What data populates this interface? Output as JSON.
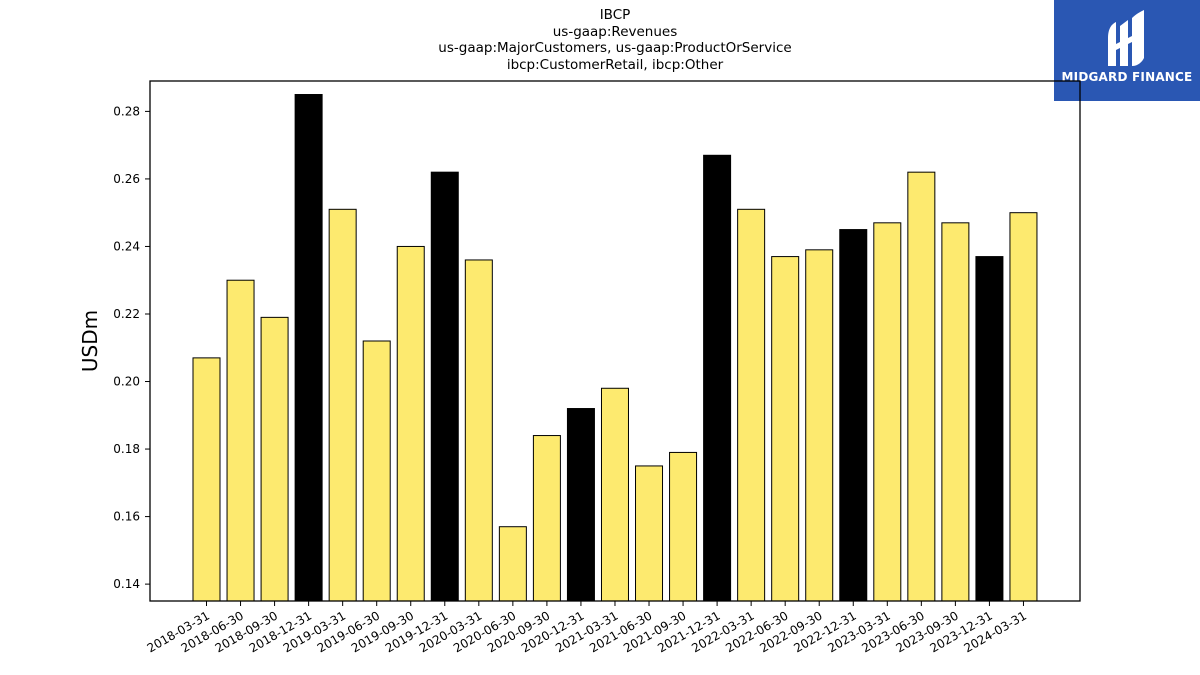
{
  "title_lines": [
    "IBCP",
    "us-gaap:Revenues",
    "us-gaap:MajorCustomers, us-gaap:ProductOrService",
    "ibcp:CustomerRetail, ibcp:Other"
  ],
  "logo": {
    "text": "MIDGARD FINANCE",
    "icon": "midgard-logo-icon",
    "background": "#2a57b3"
  },
  "colors": {
    "regular_bar": "#fdea6f",
    "q4_bar": "#000000",
    "bar_edge": "#000000"
  },
  "chart_data": {
    "type": "bar",
    "title": "IBCP\nus-gaap:Revenues\nus-gaap:MajorCustomers, us-gaap:ProductOrService\nibcp:CustomerRetail, ibcp:Other",
    "xlabel": "",
    "ylabel": "USDm",
    "ylim": [
      0.135,
      0.289
    ],
    "yticks": [
      0.14,
      0.16,
      0.18,
      0.2,
      0.22,
      0.24,
      0.26,
      0.28
    ],
    "ytick_labels": [
      "0.14",
      "0.16",
      "0.18",
      "0.20",
      "0.22",
      "0.24",
      "0.26",
      "0.28"
    ],
    "grid": false,
    "categories": [
      "2018-03-31",
      "2018-06-30",
      "2018-09-30",
      "2018-12-31",
      "2019-03-31",
      "2019-06-30",
      "2019-09-30",
      "2019-12-31",
      "2020-03-31",
      "2020-06-30",
      "2020-09-30",
      "2020-12-31",
      "2021-03-31",
      "2021-06-30",
      "2021-09-30",
      "2021-12-31",
      "2022-03-31",
      "2022-06-30",
      "2022-09-30",
      "2022-12-31",
      "2023-03-31",
      "2023-06-30",
      "2023-09-30",
      "2023-12-31",
      "2024-03-31"
    ],
    "values": [
      0.207,
      0.23,
      0.219,
      0.285,
      0.251,
      0.212,
      0.24,
      0.262,
      0.236,
      0.157,
      0.184,
      0.192,
      0.198,
      0.175,
      0.179,
      0.267,
      0.251,
      0.237,
      0.239,
      0.245,
      0.247,
      0.262,
      0.247,
      0.237,
      0.25
    ],
    "highlight": [
      false,
      false,
      false,
      true,
      false,
      false,
      false,
      true,
      false,
      false,
      false,
      true,
      false,
      false,
      false,
      true,
      false,
      false,
      false,
      true,
      false,
      false,
      false,
      true,
      false
    ]
  }
}
